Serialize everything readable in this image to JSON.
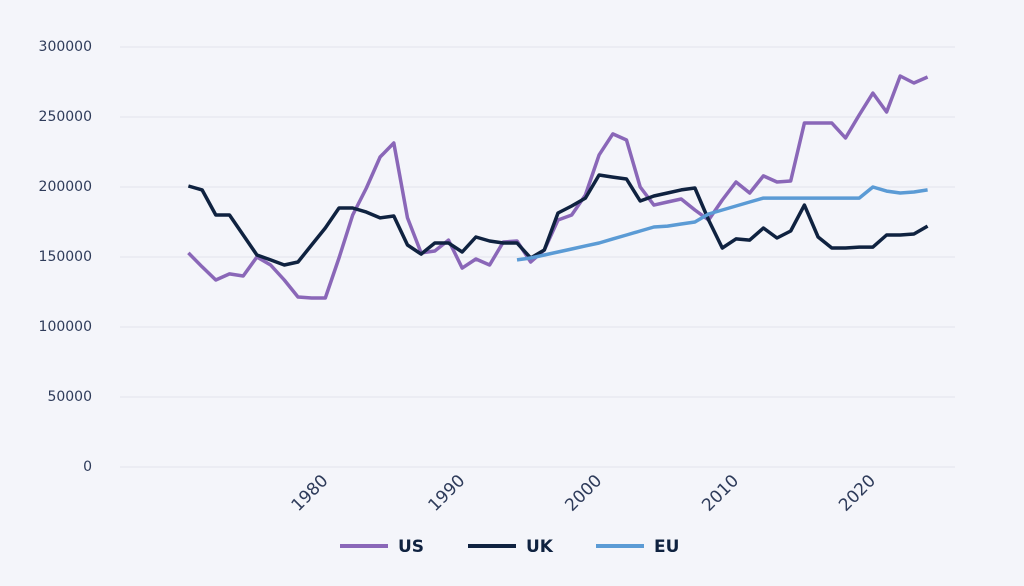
{
  "chart_data": {
    "type": "line",
    "x": [
      1970,
      1971,
      1972,
      1973,
      1974,
      1975,
      1976,
      1977,
      1978,
      1979,
      1980,
      1981,
      1982,
      1983,
      1984,
      1985,
      1986,
      1987,
      1988,
      1989,
      1990,
      1991,
      1992,
      1993,
      1994,
      1995,
      1996,
      1997,
      1998,
      1999,
      2000,
      2001,
      2002,
      2003,
      2004,
      2005,
      2006,
      2007,
      2008,
      2009,
      2010,
      2011,
      2012,
      2013,
      2014,
      2015,
      2016,
      2017,
      2018,
      2019,
      2020,
      2021,
      2022,
      2023,
      2024
    ],
    "series": [
      {
        "name": "US",
        "color": "#8a67b8",
        "values": [
          152900,
          143000,
          133600,
          137900,
          136400,
          150000,
          144300,
          133600,
          121400,
          120700,
          120700,
          149300,
          180000,
          199300,
          221400,
          231400,
          177900,
          152900,
          154300,
          162100,
          142100,
          148600,
          144300,
          160700,
          161400,
          146400,
          155000,
          176400,
          180000,
          194300,
          222900,
          237900,
          233600,
          200000,
          187100,
          189300,
          191400,
          183600,
          176400,
          190700,
          203600,
          195700,
          207900,
          203600,
          204300,
          245700,
          245700,
          245700,
          235000,
          251400,
          267100,
          253600,
          279300,
          274300,
          278600
        ]
      },
      {
        "name": "UK",
        "color": "#0f2240",
        "values": [
          200700,
          197900,
          180000,
          180000,
          165700,
          151400,
          147900,
          144300,
          146400,
          158600,
          170700,
          185000,
          185000,
          182100,
          177900,
          179300,
          158600,
          152100,
          160000,
          160000,
          153600,
          164300,
          161400,
          160000,
          160000,
          149300,
          155000,
          181400,
          186400,
          192100,
          208600,
          207100,
          205700,
          190000,
          193600,
          195700,
          197900,
          199300,
          176400,
          156400,
          162900,
          162100,
          170700,
          163600,
          168600,
          187100,
          164300,
          156400,
          156400,
          157100,
          157100,
          165700,
          165700,
          166400,
          172100
        ]
      },
      {
        "name": "EU",
        "color": "#5b9bd5",
        "values": [
          null,
          null,
          null,
          null,
          null,
          null,
          null,
          null,
          null,
          null,
          null,
          null,
          null,
          null,
          null,
          null,
          null,
          null,
          null,
          null,
          null,
          null,
          null,
          null,
          147900,
          149300,
          151400,
          153600,
          155700,
          157900,
          160000,
          162900,
          165700,
          168600,
          171400,
          172100,
          173600,
          175000,
          180700,
          183600,
          186400,
          189300,
          192100,
          192100,
          192100,
          192100,
          192100,
          192100,
          192100,
          192100,
          200000,
          197100,
          195700,
          196400,
          197900
        ]
      }
    ],
    "xlim": [
      1965,
      2026
    ],
    "xticks": [
      1980,
      1990,
      2000,
      2010,
      2020
    ],
    "ylim": [
      0,
      300000
    ],
    "yticks": [
      0,
      50000,
      100000,
      150000,
      200000,
      250000,
      300000
    ],
    "grid": true,
    "legend": "bottom"
  }
}
